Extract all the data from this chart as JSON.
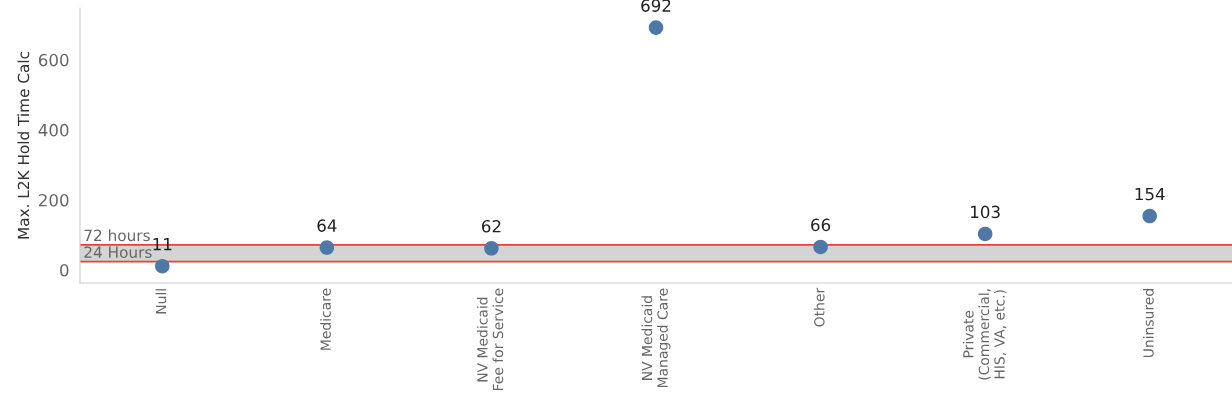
{
  "chart_data": {
    "type": "scatter",
    "ylabel": "Max. L2K Hold Time Calc",
    "categories": [
      "Null",
      "Medicare",
      "NV Medicaid\nFee for Service",
      "NV Medicaid\nManaged Care",
      "Other",
      "Private\n(Commercial,\nHIS, VA, etc.)",
      "Uninsured"
    ],
    "series": [
      {
        "color": "#4e79a7",
        "values": [
          11,
          64,
          62,
          692,
          66,
          103,
          154
        ]
      }
    ],
    "data_labels": true,
    "marker": "circle",
    "ylim": [
      -37,
      748
    ],
    "yticks": [
      0,
      200,
      400,
      600
    ],
    "grid": false,
    "bands": [
      {
        "axis": "y",
        "from": 24,
        "to": 72,
        "color": "#d4d4d4"
      }
    ],
    "ref_lines": [
      {
        "axis": "y",
        "value": 72,
        "label": "72 hours",
        "color": "#e8413c"
      },
      {
        "axis": "y",
        "value": 24,
        "label": "24 Hours",
        "color": "#e8413c"
      }
    ]
  }
}
